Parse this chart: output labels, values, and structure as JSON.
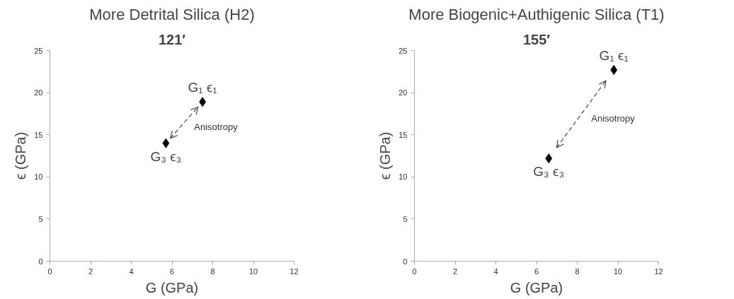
{
  "chart_data": [
    {
      "type": "scatter",
      "title": "More Detrital Silica (H2)",
      "subtitle": "121′",
      "xlabel": "G (GPa)",
      "ylabel": "ϵ (GPa)",
      "x": [
        5.7,
        7.5
      ],
      "values": [
        14,
        18.9
      ],
      "color": "#000000",
      "marker": "diamond",
      "xlim": [
        0,
        12
      ],
      "xticks": [
        0,
        2,
        4,
        6,
        8,
        10,
        12
      ],
      "ylim": [
        0,
        25
      ],
      "yticks": [
        0,
        5,
        10,
        15,
        20,
        25
      ],
      "grid": false,
      "annotations": [
        {
          "text": "G₃ ϵ₃",
          "x": 5.7,
          "y": 14
        },
        {
          "text": "G₁ ϵ₁",
          "x": 7.5,
          "y": 18.9
        },
        "Anisotropy"
      ]
    },
    {
      "type": "scatter",
      "title": "More Biogenic+Authigenic Silica (T1)",
      "subtitle": "155′",
      "xlabel": "G (GPa)",
      "ylabel": "ϵ (GPa)",
      "x": [
        6.6,
        9.8
      ],
      "values": [
        12.2,
        22.7
      ],
      "color": "#000000",
      "marker": "diamond",
      "xlim": [
        0,
        12
      ],
      "xticks": [
        0,
        2,
        4,
        6,
        8,
        10,
        12
      ],
      "ylim": [
        0,
        25
      ],
      "yticks": [
        0,
        5,
        10,
        15,
        20,
        25
      ],
      "grid": false,
      "annotations": [
        {
          "text": "G₃ ϵ₃",
          "x": 6.6,
          "y": 12.2
        },
        {
          "text": "G₁ ϵ₁",
          "x": 9.8,
          "y": 22.7
        },
        "Anisotropy"
      ]
    }
  ]
}
